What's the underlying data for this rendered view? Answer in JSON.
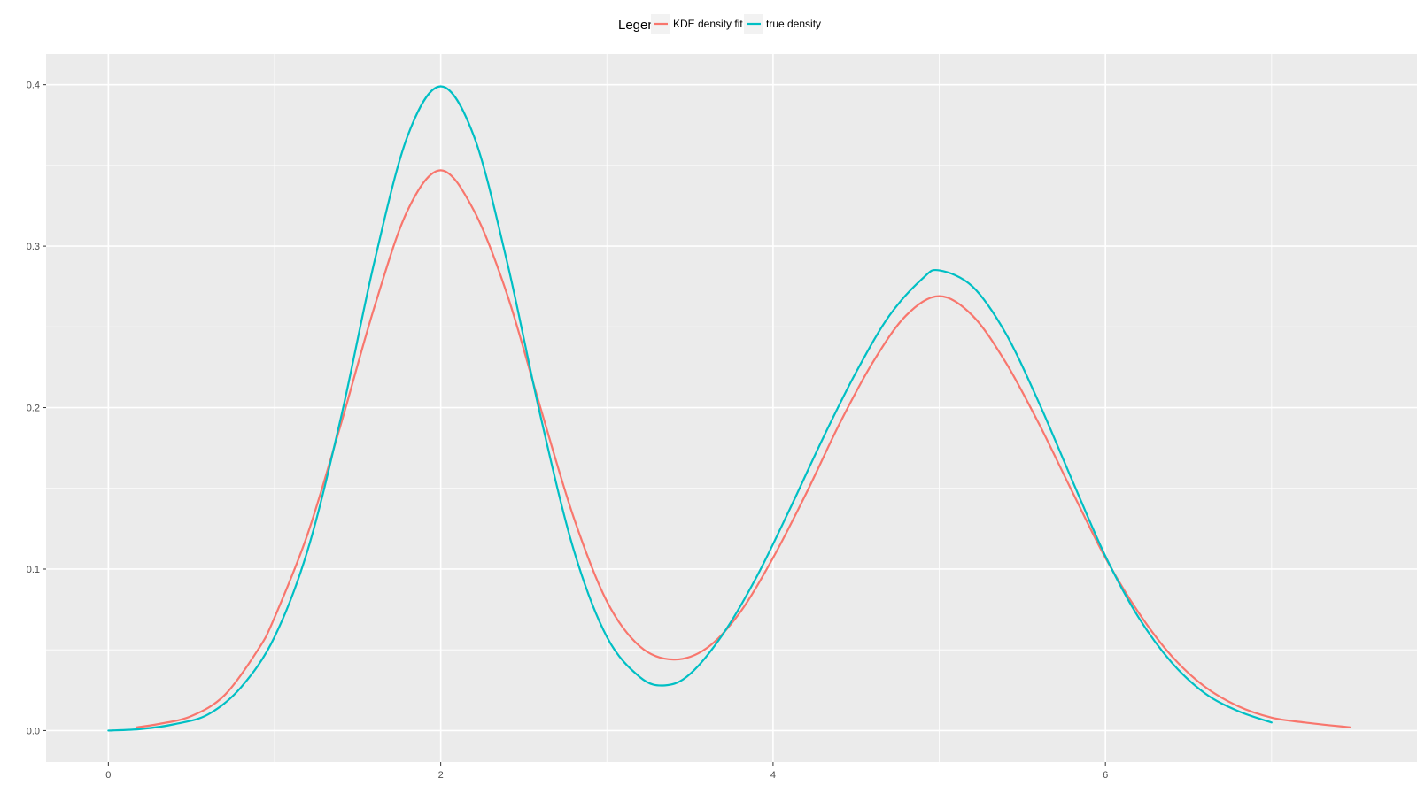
{
  "chart_data": {
    "type": "line",
    "title": "",
    "xlabel": "",
    "ylabel": "",
    "xlim": [
      -0.375,
      7.875
    ],
    "ylim": [
      -0.0195,
      0.419
    ],
    "x_major_ticks": [
      0,
      2,
      4,
      6
    ],
    "x_minor_ticks": [
      1,
      3,
      5,
      7
    ],
    "y_major_ticks": [
      0.0,
      0.1,
      0.2,
      0.3,
      0.4
    ],
    "y_minor_ticks": [
      0.05,
      0.15,
      0.25,
      0.35
    ],
    "x_tick_labels": [
      "0",
      "2",
      "4",
      "6"
    ],
    "y_tick_labels": [
      "0.0",
      "0.1",
      "0.2",
      "0.3",
      "0.4"
    ],
    "grid": true,
    "legend": {
      "title": "Legend",
      "position": "top",
      "entries": [
        "KDE density fit",
        "true density"
      ]
    },
    "colors": {
      "panel_background": "#ebebeb",
      "grid": "#ffffff",
      "tick_label": "#4d4d4d",
      "legend_key_background": "#f2f2f2"
    },
    "series": [
      {
        "name": "KDE density fit",
        "color": "#f8766d",
        "x": [
          0.17,
          0.3,
          0.5,
          0.7,
          0.9,
          1.0,
          1.2,
          1.4,
          1.6,
          1.8,
          2.0,
          2.2,
          2.4,
          2.6,
          2.8,
          3.0,
          3.2,
          3.4,
          3.6,
          3.8,
          4.0,
          4.2,
          4.4,
          4.6,
          4.8,
          5.0,
          5.2,
          5.4,
          5.6,
          5.8,
          6.0,
          6.2,
          6.4,
          6.6,
          6.8,
          7.0,
          7.2,
          7.47
        ],
        "y": [
          0.002,
          0.004,
          0.009,
          0.022,
          0.05,
          0.07,
          0.122,
          0.19,
          0.262,
          0.322,
          0.347,
          0.322,
          0.27,
          0.2,
          0.132,
          0.08,
          0.052,
          0.044,
          0.051,
          0.073,
          0.107,
          0.147,
          0.19,
          0.228,
          0.257,
          0.269,
          0.257,
          0.228,
          0.19,
          0.148,
          0.107,
          0.073,
          0.046,
          0.027,
          0.015,
          0.008,
          0.005,
          0.002
        ]
      },
      {
        "name": "true density",
        "color": "#00bfc4",
        "x": [
          0.0,
          0.2,
          0.4,
          0.6,
          0.8,
          1.0,
          1.2,
          1.4,
          1.6,
          1.8,
          2.0,
          2.2,
          2.4,
          2.6,
          2.8,
          3.0,
          3.2,
          3.35,
          3.5,
          3.7,
          3.9,
          4.1,
          4.3,
          4.5,
          4.7,
          4.9,
          5.0,
          5.2,
          5.4,
          5.6,
          5.8,
          6.0,
          6.2,
          6.4,
          6.6,
          6.8,
          7.0
        ],
        "y": [
          0.0,
          0.001,
          0.004,
          0.01,
          0.027,
          0.058,
          0.112,
          0.194,
          0.29,
          0.368,
          0.399,
          0.368,
          0.29,
          0.195,
          0.112,
          0.058,
          0.033,
          0.028,
          0.035,
          0.06,
          0.095,
          0.137,
          0.181,
          0.222,
          0.257,
          0.28,
          0.285,
          0.275,
          0.246,
          0.203,
          0.155,
          0.108,
          0.07,
          0.042,
          0.023,
          0.012,
          0.005
        ]
      }
    ]
  }
}
